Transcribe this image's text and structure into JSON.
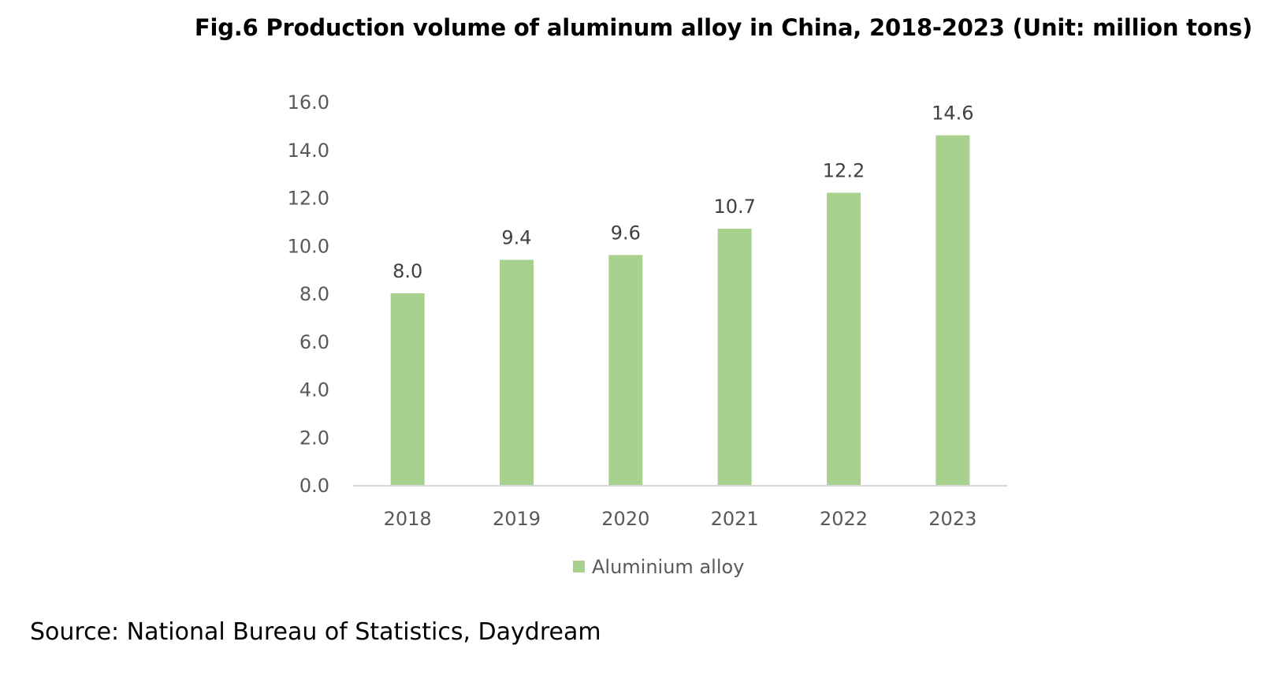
{
  "title": "Fig.6 Production volume of aluminum alloy in China, 2018-2023 (Unit: million tons)",
  "source": "Source: National Bureau of Statistics, Daydream",
  "chart_data": {
    "type": "bar",
    "title": "Fig.6 Production volume of aluminum alloy in China, 2018-2023 (Unit: million tons)",
    "xlabel": "",
    "ylabel": "",
    "categories": [
      "2018",
      "2019",
      "2020",
      "2021",
      "2022",
      "2023"
    ],
    "series": [
      {
        "name": "Aluminium alloy",
        "values": [
          8.0,
          9.4,
          9.6,
          10.7,
          12.2,
          14.6
        ],
        "color": "#a9d18e"
      }
    ],
    "data_labels": [
      "8.0",
      "9.4",
      "9.6",
      "10.7",
      "12.2",
      "14.6"
    ],
    "ylim": [
      0,
      16
    ],
    "yticks": [
      "0.0",
      "2.0",
      "4.0",
      "6.0",
      "8.0",
      "10.0",
      "12.0",
      "14.0",
      "16.0"
    ],
    "grid": false,
    "legend_position": "bottom",
    "axis_color": "#d9d9d9"
  }
}
